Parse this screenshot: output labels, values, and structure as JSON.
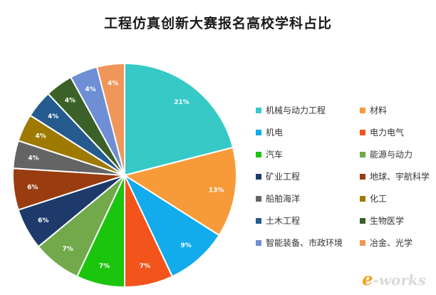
{
  "chart_data": {
    "type": "pie",
    "title": "工程仿真创新大赛报名高校学科占比",
    "slices": [
      {
        "label": "机械与动力工程",
        "value": 21,
        "display": "21%",
        "color": "#36C9C6"
      },
      {
        "label": "材料",
        "value": 13,
        "display": "13%",
        "color": "#F79B3A"
      },
      {
        "label": "机电",
        "value": 9,
        "display": "9%",
        "color": "#12ABEB"
      },
      {
        "label": "电力电气",
        "value": 7,
        "display": "7%",
        "color": "#F2541B"
      },
      {
        "label": "汽车",
        "value": 7,
        "display": "7%",
        "color": "#1BC40D"
      },
      {
        "label": "能源与动力",
        "value": 7,
        "display": "7%",
        "color": "#71A94B"
      },
      {
        "label": "矿业工程",
        "value": 6,
        "display": "6%",
        "color": "#1E3A6B"
      },
      {
        "label": "地球、宇航科学",
        "value": 6,
        "display": "6%",
        "color": "#993C10"
      },
      {
        "label": "船舶海洋",
        "value": 4,
        "display": "4%",
        "color": "#646464"
      },
      {
        "label": "化工",
        "value": 4,
        "display": "4%",
        "color": "#9E7A00"
      },
      {
        "label": "土木工程",
        "value": 4,
        "display": "4%",
        "color": "#255B8E"
      },
      {
        "label": "生物医学",
        "value": 4,
        "display": "4%",
        "color": "#3C6128"
      },
      {
        "label": "智能装备、市政环境",
        "value": 4,
        "display": "4%",
        "color": "#6E8FD5"
      },
      {
        "label": "冶金、光学",
        "value": 4,
        "display": "4%",
        "color": "#F0965A"
      }
    ],
    "legend_placement": "right"
  },
  "watermark": {
    "accent": "e",
    "rest": "-works"
  }
}
